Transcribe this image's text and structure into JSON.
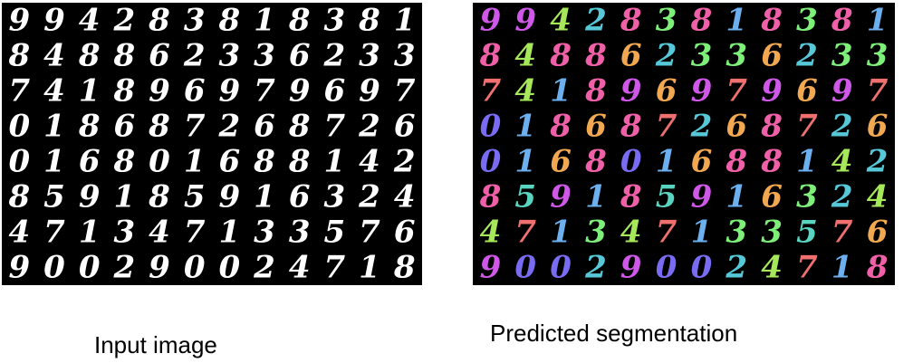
{
  "input_caption": "Input image",
  "output_caption": "Predicted segmentation",
  "digit_grid": [
    [
      "9",
      "9",
      "4",
      "2",
      "8",
      "3",
      "8",
      "1",
      "8",
      "3",
      "8",
      "1"
    ],
    [
      "8",
      "4",
      "8",
      "8",
      "6",
      "2",
      "3",
      "3",
      "6",
      "2",
      "3",
      "3"
    ],
    [
      "7",
      "4",
      "1",
      "8",
      "9",
      "6",
      "9",
      "7",
      "9",
      "6",
      "9",
      "7"
    ],
    [
      "0",
      "1",
      "8",
      "6",
      "8",
      "7",
      "2",
      "6",
      "8",
      "7",
      "2",
      "6"
    ],
    [
      "0",
      "1",
      "6",
      "8",
      "0",
      "1",
      "6",
      "8",
      "8",
      "1",
      "4",
      "2"
    ],
    [
      "8",
      "5",
      "9",
      "1",
      "8",
      "5",
      "9",
      "1",
      "6",
      "3",
      "2",
      "4"
    ],
    [
      "4",
      "7",
      "1",
      "3",
      "4",
      "7",
      "1",
      "3",
      "3",
      "5",
      "7",
      "6"
    ],
    [
      "9",
      "0",
      "0",
      "2",
      "9",
      "0",
      "0",
      "2",
      "4",
      "7",
      "1",
      "8"
    ]
  ],
  "input_digit_color": "#ffffff",
  "panel_background": "#000000",
  "segment_colors": {
    "0": "#7a6cf2",
    "1": "#6db0f0",
    "2": "#56c8d8",
    "3": "#7ef07a",
    "4": "#a6e85a",
    "5": "#58d4c0",
    "6": "#f2a850",
    "7": "#f07070",
    "8": "#f060a8",
    "9": "#d058e8"
  }
}
